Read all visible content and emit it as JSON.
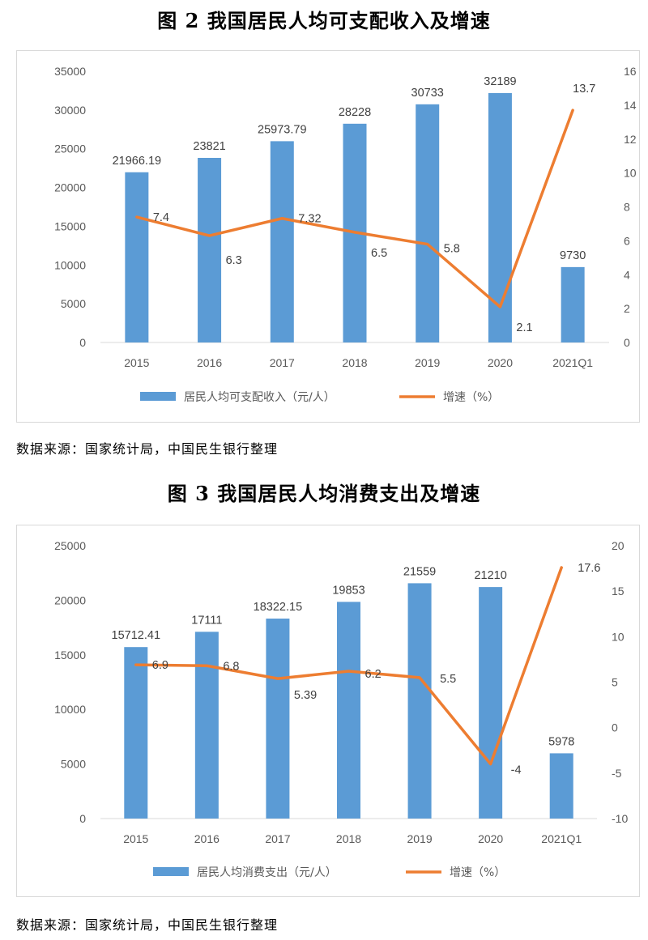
{
  "colors": {
    "bar": "#5b9bd5",
    "line": "#ed7d31",
    "axis": "#d9d9d9"
  },
  "charts": [
    {
      "figure_title": "图 2   我国居民人均可支配收入及增速",
      "source": "数据来源：国家统计局，中国民生银行整理",
      "chart_data": {
        "type": "bar",
        "categories": [
          "2015",
          "2016",
          "2017",
          "2018",
          "2019",
          "2020",
          "2021Q1"
        ],
        "series": [
          {
            "name": "居民人均可支配收入（元/人）",
            "type": "bar",
            "axis": "left",
            "values": [
              21966.19,
              23821,
              25973.79,
              28228,
              30733,
              32189,
              9730
            ],
            "labels": [
              "21966.19",
              "23821",
              "25973.79",
              "28228",
              "30733",
              "32189",
              "9730"
            ]
          },
          {
            "name": "增速（%）",
            "type": "line",
            "axis": "right",
            "values": [
              7.4,
              6.3,
              7.32,
              6.5,
              5.8,
              2.1,
              13.7
            ],
            "labels": [
              "7.4",
              "6.3",
              "7.32",
              "6.5",
              "5.8",
              "2.1",
              "13.7"
            ]
          }
        ],
        "ylim_left": [
          0,
          35000
        ],
        "yticks_left": [
          "0",
          "5000",
          "10000",
          "15000",
          "20000",
          "25000",
          "30000",
          "35000"
        ],
        "ylim_right": [
          0,
          16
        ],
        "yticks_right": [
          "0",
          "2",
          "4",
          "6",
          "8",
          "10",
          "12",
          "14",
          "16"
        ],
        "grid": false,
        "legend": "bottom"
      }
    },
    {
      "figure_title": "图 3   我国居民人均消费支出及增速",
      "source": "数据来源：国家统计局，中国民生银行整理",
      "chart_data": {
        "type": "bar",
        "categories": [
          "2015",
          "2016",
          "2017",
          "2018",
          "2019",
          "2020",
          "2021Q1"
        ],
        "series": [
          {
            "name": "居民人均消费支出（元/人）",
            "type": "bar",
            "axis": "left",
            "values": [
              15712.41,
              17111,
              18322.15,
              19853,
              21559,
              21210,
              5978
            ],
            "labels": [
              "15712.41",
              "17111",
              "18322.15",
              "19853",
              "21559",
              "21210",
              "5978"
            ]
          },
          {
            "name": "增速（%）",
            "type": "line",
            "axis": "right",
            "values": [
              6.9,
              6.8,
              5.39,
              6.2,
              5.5,
              -4,
              17.6
            ],
            "labels": [
              "6.9",
              "6.8",
              "5.39",
              "6.2",
              "5.5",
              "-4",
              "17.6"
            ]
          }
        ],
        "ylim_left": [
          0,
          25000
        ],
        "yticks_left": [
          "0",
          "5000",
          "10000",
          "15000",
          "20000",
          "25000"
        ],
        "ylim_right": [
          -10,
          20
        ],
        "yticks_right": [
          "-10",
          "-5",
          "0",
          "5",
          "10",
          "15",
          "20"
        ],
        "grid": false,
        "legend": "bottom"
      }
    }
  ]
}
